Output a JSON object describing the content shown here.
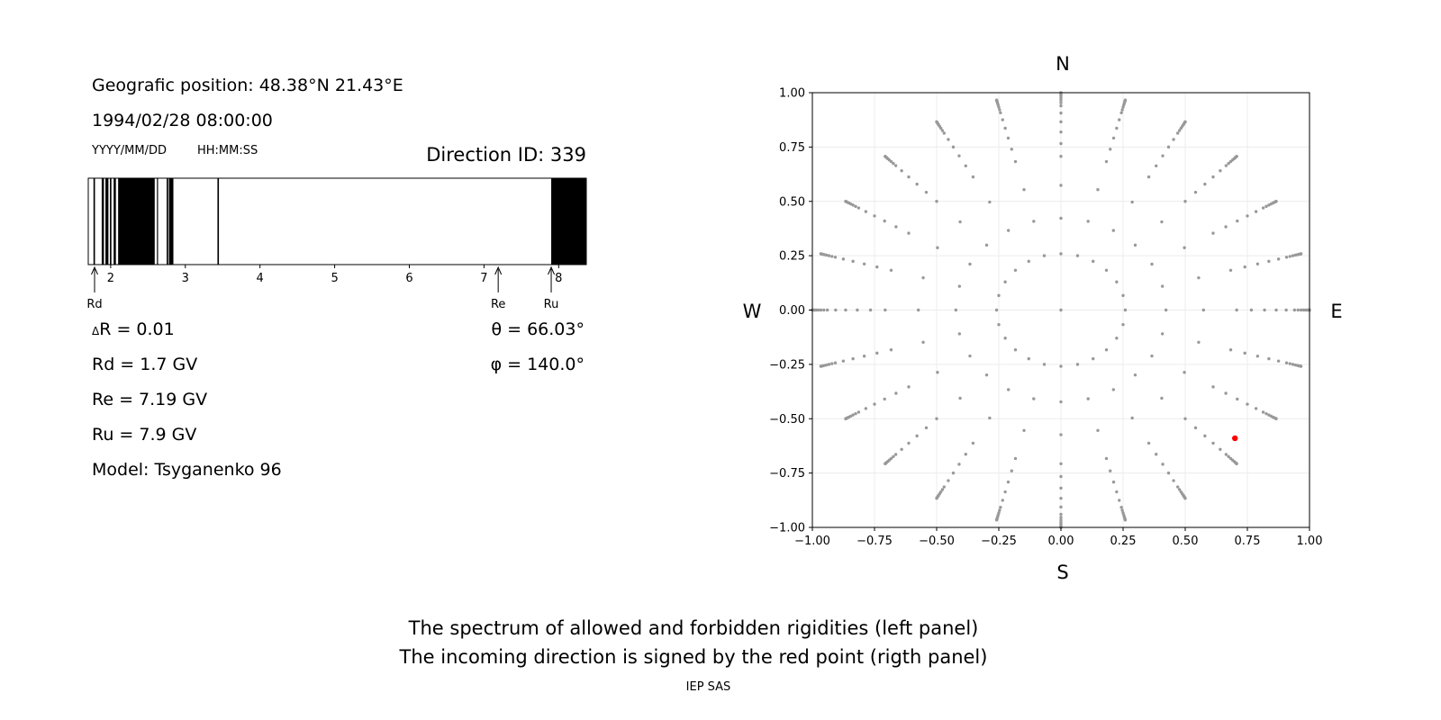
{
  "info": {
    "position": "Geografic position: 48.38°N 21.43°E",
    "datetime": "1994/02/28 08:00:00",
    "date_format": "YYYY/MM/DD",
    "time_format": "HH:MM:SS",
    "direction_id": "Direction ID: 339",
    "delta_r_symbol": "Δ",
    "delta_r": "R = 0.01",
    "rd": "Rd = 1.7 GV",
    "re": "Re = 7.19 GV",
    "ru": "Ru = 7.9 GV",
    "model": "Model: Tsyganenko 96",
    "theta": "θ = 66.03°",
    "phi": "φ = 140.0°"
  },
  "caption": {
    "line1": "The spectrum of allowed and forbidden rigidities (left panel)",
    "line2": "The incoming direction is signed by the red point (rigth panel)",
    "credit": "IEP SAS"
  },
  "chart_data": [
    {
      "type": "bar",
      "title": "",
      "xlim": [
        1.7,
        8.37
      ],
      "x_ticks": [
        "2",
        "3",
        "4",
        "5",
        "6",
        "7",
        "8"
      ],
      "x_tick_values": [
        2,
        3,
        4,
        5,
        6,
        7,
        8
      ],
      "markers": [
        {
          "label": "Rd",
          "x": 1.7
        },
        {
          "label": "Re",
          "x": 7.19
        },
        {
          "label": "Ru",
          "x": 7.9
        }
      ],
      "forbidden_color": "#000000",
      "allowed_color": "#ffffff",
      "forbidden_intervals": [
        [
          1.77,
          1.79
        ],
        [
          1.88,
          1.91
        ],
        [
          1.93,
          1.97
        ],
        [
          1.99,
          2.01
        ],
        [
          2.04,
          2.07
        ],
        [
          2.1,
          2.59
        ],
        [
          2.62,
          2.63
        ],
        [
          2.75,
          2.77
        ],
        [
          2.78,
          2.84
        ],
        [
          3.43,
          3.45
        ],
        [
          7.9,
          8.37
        ]
      ]
    },
    {
      "type": "scatter",
      "title": "",
      "xlim": [
        -1.0,
        1.0
      ],
      "ylim": [
        -1.0,
        1.0
      ],
      "x_ticks": [
        "−1.00",
        "−0.75",
        "−0.50",
        "−0.25",
        "0.00",
        "0.25",
        "0.50",
        "0.75",
        "1.00"
      ],
      "y_ticks": [
        "1.00",
        "0.75",
        "0.50",
        "0.25",
        "0.00",
        "−0.25",
        "−0.50",
        "−0.75",
        "−1.00"
      ],
      "tick_values": [
        -1.0,
        -0.75,
        -0.5,
        -0.25,
        0.0,
        0.25,
        0.5,
        0.75,
        1.0
      ],
      "compass": {
        "north": "N",
        "south": "S",
        "west": "W",
        "east": "E"
      },
      "grid": true,
      "directions": {
        "zenith_angles_deg": [
          0,
          15,
          25,
          35,
          45,
          50,
          55,
          60,
          65,
          70,
          72.5,
          75,
          77.5,
          80,
          82.5,
          85,
          87.5,
          90
        ],
        "azimuth_step_deg": 15
      },
      "point_color": "#999999",
      "highlight": {
        "x": 0.7,
        "y": -0.59,
        "color": "#ff0000"
      }
    }
  ]
}
